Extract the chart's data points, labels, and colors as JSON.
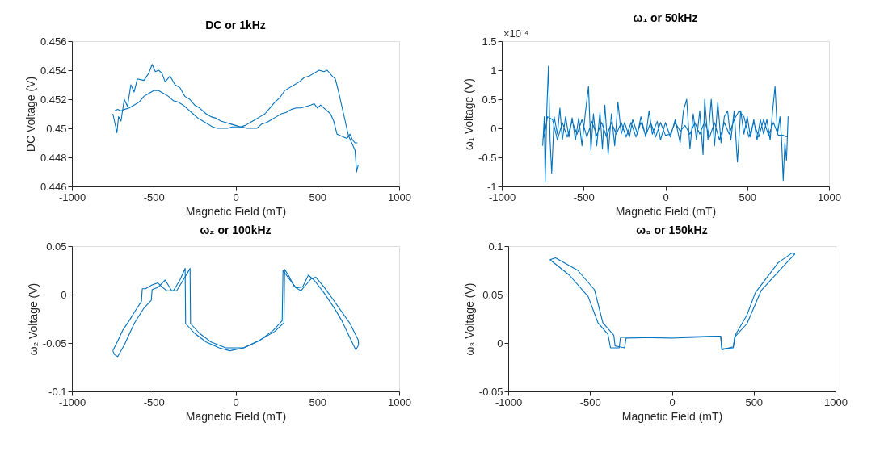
{
  "chart_data": [
    {
      "type": "line",
      "title": "DC or 1kHz",
      "xlabel": "Magnetic Field (mT)",
      "ylabel": "DC Voltage (V)",
      "xlim": [
        -1000,
        1000
      ],
      "xticks": [
        -1000,
        -500,
        0,
        500,
        1000
      ],
      "ylim": [
        0.446,
        0.456
      ],
      "yticks": [
        0.446,
        0.448,
        0.45,
        0.452,
        0.454,
        0.456
      ],
      "grid": false,
      "marker": "none",
      "line_style": "solid",
      "series": [
        {
          "color": "#0072bd",
          "x": [
            -750,
            -740,
            -725,
            -715,
            -700,
            -680,
            -660,
            -640,
            -620,
            -600,
            -560,
            -530,
            -510,
            -490,
            -470,
            -450,
            -430,
            -400,
            -370,
            -340,
            -310,
            -280,
            -250,
            -220,
            -180,
            -150,
            -120,
            -90,
            -60,
            -30,
            0,
            30,
            60,
            90,
            120,
            150,
            180,
            210,
            240,
            270,
            300,
            330,
            360,
            390,
            420,
            450,
            480,
            510,
            540,
            560,
            590,
            610,
            630,
            650,
            670,
            690,
            710,
            730,
            740,
            750
          ],
          "values": [
            0.451,
            0.4505,
            0.4497,
            0.4508,
            0.4505,
            0.452,
            0.4515,
            0.453,
            0.4525,
            0.4534,
            0.4533,
            0.4538,
            0.4544,
            0.4539,
            0.454,
            0.4538,
            0.4532,
            0.4536,
            0.453,
            0.4528,
            0.4522,
            0.452,
            0.4516,
            0.4514,
            0.451,
            0.4508,
            0.4507,
            0.4505,
            0.4504,
            0.4503,
            0.4502,
            0.4501,
            0.4502,
            0.4504,
            0.4506,
            0.4508,
            0.451,
            0.4514,
            0.4518,
            0.4521,
            0.4526,
            0.4528,
            0.453,
            0.4532,
            0.4535,
            0.4536,
            0.4538,
            0.454,
            0.4539,
            0.454,
            0.4536,
            0.4534,
            0.4525,
            0.4515,
            0.4505,
            0.4495,
            0.449,
            0.4485,
            0.447,
            0.4475
          ]
        },
        {
          "color": "#0072bd",
          "x": [
            745,
            730,
            715,
            700,
            680,
            660,
            640,
            620,
            600,
            580,
            550,
            520,
            500,
            480,
            460,
            430,
            400,
            370,
            340,
            310,
            280,
            250,
            220,
            190,
            160,
            130,
            100,
            70,
            40,
            10,
            -20,
            -50,
            -80,
            -110,
            -140,
            -170,
            -200,
            -230,
            -260,
            -290,
            -320,
            -350,
            -380,
            -410,
            -440,
            -470,
            -500,
            -530,
            -560,
            -590,
            -620,
            -650,
            -680,
            -700,
            -720,
            -740
          ],
          "values": [
            0.449,
            0.449,
            0.4492,
            0.4496,
            0.4493,
            0.4494,
            0.4495,
            0.4496,
            0.4505,
            0.451,
            0.4513,
            0.4516,
            0.4514,
            0.4517,
            0.4516,
            0.4515,
            0.4514,
            0.4514,
            0.4513,
            0.4511,
            0.451,
            0.4508,
            0.4506,
            0.4504,
            0.4503,
            0.45,
            0.45,
            0.45,
            0.4501,
            0.4501,
            0.4501,
            0.45,
            0.45,
            0.45,
            0.4501,
            0.4503,
            0.4505,
            0.4507,
            0.451,
            0.4513,
            0.4516,
            0.4518,
            0.4519,
            0.4522,
            0.4524,
            0.4526,
            0.4526,
            0.4524,
            0.4522,
            0.4518,
            0.4516,
            0.4514,
            0.4513,
            0.4512,
            0.4513,
            0.4512
          ]
        }
      ]
    },
    {
      "type": "line",
      "title": "ω₁ or 50kHz",
      "xlabel": "Magnetic Field (mT)",
      "ylabel": "ω₁ Voltage (V)",
      "annotations": [
        "×10⁻⁴"
      ],
      "xlim": [
        -1000,
        1000
      ],
      "xticks": [
        -1000,
        -500,
        0,
        500,
        1000
      ],
      "ylim": [
        -1,
        1.5
      ],
      "yticks": [
        -1,
        -0.5,
        0,
        0.5,
        1,
        1.5
      ],
      "grid": false,
      "marker": "none",
      "line_style": "solid",
      "series": [
        {
          "color": "#0072bd",
          "x": [
            -750,
            -740,
            -735,
            -725,
            -715,
            -705,
            -695,
            -680,
            -660,
            -645,
            -630,
            -610,
            -590,
            -570,
            -550,
            -530,
            -510,
            -490,
            -470,
            -455,
            -440,
            -420,
            -400,
            -385,
            -370,
            -350,
            -330,
            -310,
            -290,
            -270,
            -250,
            -220,
            -200,
            -170,
            -150,
            -120,
            -100,
            -80,
            -50,
            -30,
            0,
            30,
            60,
            90,
            110,
            130,
            150,
            170,
            190,
            210,
            230,
            240,
            260,
            280,
            300,
            320,
            340,
            360,
            380,
            400,
            420,
            440,
            460,
            480,
            500,
            520,
            540,
            560,
            580,
            600,
            620,
            640,
            655,
            670,
            685,
            700,
            710,
            720,
            730,
            740,
            750,
            745,
            720,
            690,
            660,
            630,
            600,
            570,
            540,
            510,
            480,
            450,
            420,
            390,
            360,
            330,
            300,
            270,
            240,
            210,
            180,
            150,
            120,
            90,
            60,
            30,
            0,
            -30,
            -60,
            -90,
            -120,
            -150,
            -180,
            -210,
            -240,
            -270,
            -300,
            -330,
            -360,
            -390,
            -420,
            -450,
            -480,
            -510,
            -540,
            -570,
            -600,
            -630,
            -660,
            -690,
            -720,
            -740,
            -750
          ],
          "values": [
            -0.3,
            0.2,
            -0.93,
            0.3,
            1.07,
            -0.2,
            -0.77,
            0.2,
            -0.1,
            0.35,
            -0.2,
            0.2,
            -0.15,
            0.18,
            -0.2,
            0.18,
            -0.3,
            0.25,
            0.72,
            -0.38,
            0.25,
            -0.3,
            0.28,
            -0.35,
            0.4,
            -0.45,
            0.25,
            -0.3,
            0.45,
            -0.1,
            0.1,
            -0.15,
            0.15,
            -0.1,
            0.2,
            -0.15,
            0.3,
            -0.1,
            0.12,
            -0.2,
            0.1,
            -0.15,
            0.15,
            -0.25,
            0.3,
            0.5,
            -0.35,
            0.25,
            -0.2,
            0.3,
            -0.45,
            0.5,
            -0.2,
            0.5,
            -0.3,
            0.45,
            -0.25,
            0.2,
            0.3,
            -0.2,
            0.3,
            -0.58,
            0.3,
            -0.1,
            0.2,
            -0.15,
            0.15,
            -0.2,
            0.15,
            -0.1,
            0.15,
            -0.2,
            0.3,
            0.72,
            -0.1,
            0.2,
            -0.2,
            -0.9,
            -0.25,
            -0.55,
            0.2,
            -0.15,
            -0.12,
            -0.12,
            0.1,
            -0.12,
            0.15,
            -0.15,
            0.1,
            -0.15,
            0.2,
            0.3,
            0.15,
            -0.1,
            0.1,
            -0.2,
            0.1,
            -0.15,
            0.12,
            -0.1,
            0.1,
            -0.1,
            0.05,
            -0.05,
            0.1,
            -0.1,
            -0.12,
            0.1,
            -0.15,
            0.1,
            -0.12,
            0.1,
            -0.15,
            0.1,
            -0.15,
            0.1,
            -0.1,
            0.1,
            -0.15,
            0.1,
            -0.12,
            0.12,
            -0.15,
            0.15,
            -0.1,
            0.12,
            -0.15,
            0.1,
            -0.2,
            0.15,
            0.2,
            -0.1,
            -0.2
          ]
        }
      ]
    },
    {
      "type": "line",
      "title": "ω₂ or 100kHz",
      "xlabel": "Magnetic Field (mT)",
      "ylabel": "ω₂ Voltage (V)",
      "xlim": [
        -1000,
        1000
      ],
      "xticks": [
        -1000,
        -500,
        0,
        500,
        1000
      ],
      "ylim": [
        -0.1,
        0.05
      ],
      "yticks": [
        -0.1,
        -0.05,
        0,
        0.05
      ],
      "grid": false,
      "marker": "none",
      "line_style": "solid",
      "series": [
        {
          "color": "#0072bd",
          "x": [
            -750,
            -720,
            -690,
            -650,
            -610,
            -575,
            -570,
            -550,
            -510,
            -475,
            -450,
            -420,
            -380,
            -340,
            -308,
            -305,
            -250,
            -180,
            -100,
            -35,
            50,
            150,
            230,
            285,
            290,
            320,
            370,
            410,
            445,
            480,
            540,
            600,
            650,
            700,
            735,
            752
          ],
          "values": [
            -0.058,
            -0.048,
            -0.037,
            -0.027,
            -0.016,
            -0.007,
            0.006,
            0.006,
            0.01,
            0.012,
            0.008,
            0.004,
            0.004,
            0.015,
            0.027,
            -0.03,
            -0.04,
            -0.049,
            -0.055,
            -0.058,
            -0.055,
            -0.047,
            -0.037,
            -0.027,
            0.025,
            0.018,
            0.007,
            0.008,
            0.02,
            0.015,
            0.002,
            -0.013,
            -0.027,
            -0.045,
            -0.057,
            -0.052
          ]
        },
        {
          "color": "#0072bd",
          "x": [
            752,
            750,
            700,
            650,
            600,
            540,
            490,
            460,
            430,
            400,
            360,
            330,
            300,
            296,
            240,
            150,
            50,
            -60,
            -150,
            -220,
            -275,
            -278,
            -320,
            -360,
            -390,
            -430,
            -470,
            -510,
            -515,
            -560,
            -620,
            -680,
            -720,
            -740,
            -750
          ],
          "values": [
            -0.052,
            -0.047,
            -0.03,
            -0.018,
            -0.006,
            0.008,
            0.018,
            0.016,
            0.01,
            0.004,
            0.008,
            0.018,
            0.026,
            -0.029,
            -0.038,
            -0.047,
            -0.055,
            -0.055,
            -0.049,
            -0.04,
            -0.03,
            0.027,
            0.015,
            0.004,
            0.004,
            0.015,
            0.008,
            0.005,
            -0.006,
            -0.014,
            -0.03,
            -0.052,
            -0.064,
            -0.062,
            -0.058
          ]
        }
      ]
    },
    {
      "type": "line",
      "title": "ω₃ or 150kHz",
      "xlabel": "Magnetic Field (mT)",
      "ylabel": "ω₃ Voltage (V)",
      "xlim": [
        -1000,
        1000
      ],
      "xticks": [
        -1000,
        -500,
        0,
        500,
        1000
      ],
      "ylim": [
        -0.05,
        0.1
      ],
      "yticks": [
        -0.05,
        0,
        0.05,
        0.1
      ],
      "grid": false,
      "marker": "none",
      "line_style": "solid",
      "series": [
        {
          "color": "#0072bd",
          "x": [
            -745,
            -711,
            -575,
            -473,
            -422,
            -355,
            -347,
            -289,
            -280,
            0,
            290,
            298,
            306,
            375,
            390,
            459,
            510,
            650,
            735,
            752
          ],
          "values": [
            0.086,
            0.088,
            0.075,
            0.055,
            0.021,
            0.008,
            -0.003,
            -0.005,
            0.005,
            0.006,
            0.007,
            0.007,
            -0.007,
            -0.004,
            0.009,
            0.029,
            0.052,
            0.083,
            0.093,
            0.092
          ]
        },
        {
          "color": "#0072bd",
          "x": [
            752,
            680,
            545,
            459,
            383,
            375,
            306,
            298,
            0,
            -310,
            -315,
            -322,
            -375,
            -391,
            -452,
            -512,
            -626,
            -745
          ],
          "values": [
            0.092,
            0.079,
            0.054,
            0.02,
            0.006,
            -0.005,
            -0.006,
            0.007,
            0.005,
            0.006,
            0.005,
            -0.005,
            -0.005,
            0.009,
            0.021,
            0.048,
            0.07,
            0.086
          ]
        }
      ]
    }
  ]
}
